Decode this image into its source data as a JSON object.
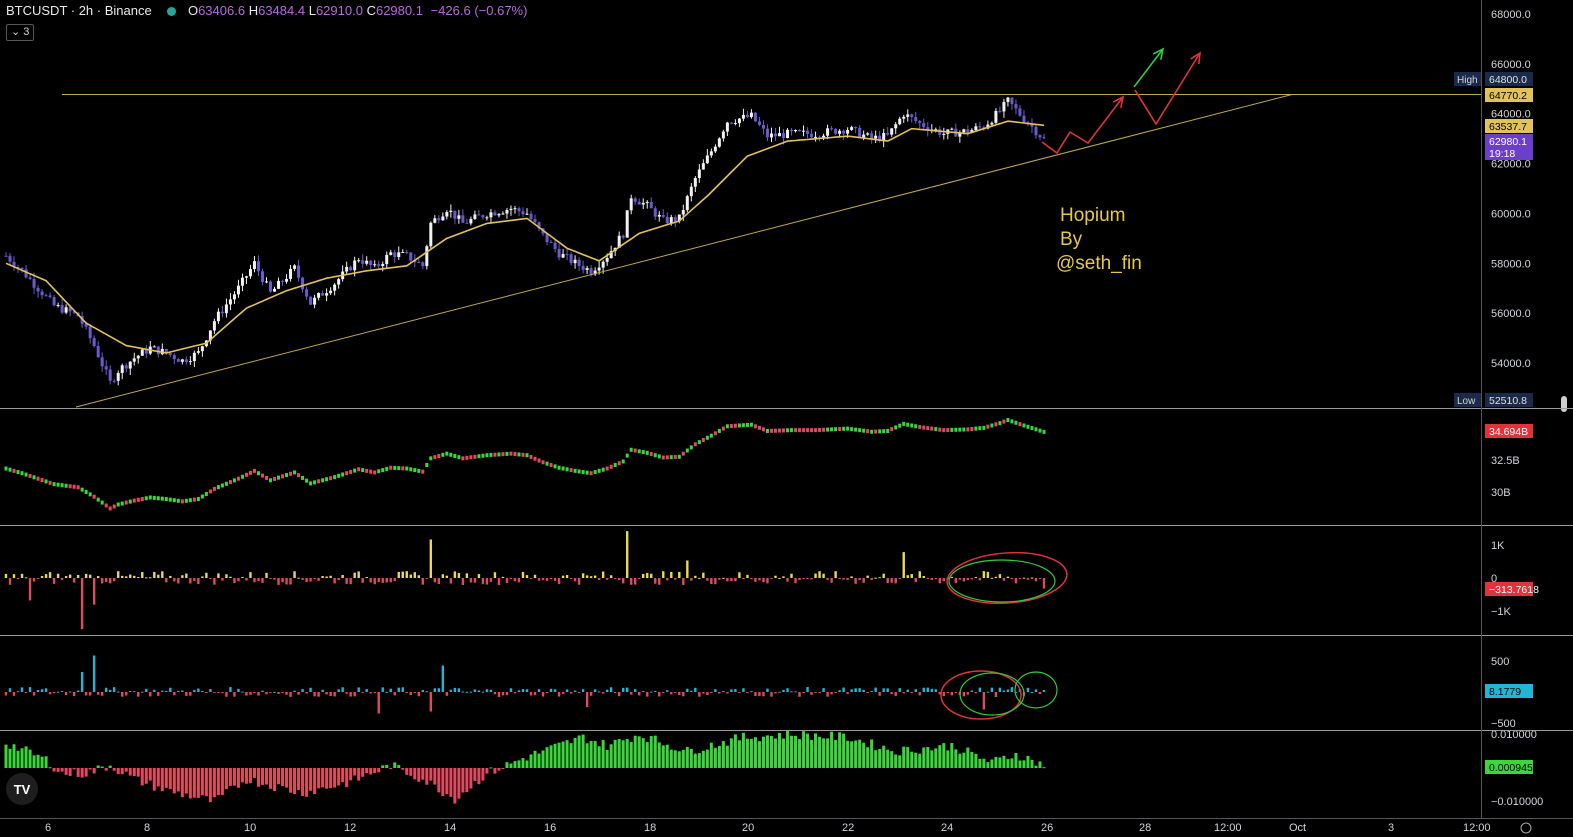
{
  "header": {
    "symbol": "BTCUSDT · 2h · Binance",
    "o_label": "O",
    "o_value": "63406.6",
    "h_label": "H",
    "h_value": "63484.4",
    "l_label": "L",
    "l_value": "62910.0",
    "c_label": "C",
    "c_value": "62980.1",
    "change": "−426.6 (−0.67%)"
  },
  "collapse_label": "⌄ 3",
  "logo_label": "TV",
  "colors": {
    "background": "#000000",
    "candle_up": "#f2f2f2",
    "candle_down": "#6a5acd",
    "ma_line": "#e2c25a",
    "trend_line": "#bfa84f",
    "hist_pos_yellow": "#e8d85a",
    "hist_neg_red": "#e04a60",
    "hist_pos_cyan": "#21b6d6",
    "hist_pos_green": "#3bd63b",
    "arrow_red": "#e0333a",
    "arrow_green": "#2ecc40",
    "annotation_text": "#e6c84a"
  },
  "annotation": {
    "lines": [
      "Hopium",
      "By",
      "@seth_fin"
    ]
  },
  "chart_data": [
    {
      "type": "candlestick",
      "name": "price",
      "ylim": [
        52000,
        68500
      ],
      "y_ticks": [
        "68000.0",
        "66000.0",
        "64000.0",
        "62000.0",
        "60000.0",
        "58000.0",
        "56000.0",
        "54000.0"
      ],
      "y_tick_values": [
        68000,
        66000,
        64000,
        62000,
        60000,
        58000,
        56000,
        54000
      ],
      "anchors": [
        [
          0,
          58300
        ],
        [
          4,
          57700
        ],
        [
          8,
          57000
        ],
        [
          12,
          56300
        ],
        [
          18,
          55900
        ],
        [
          22,
          54700
        ],
        [
          26,
          53200
        ],
        [
          28,
          53700
        ],
        [
          32,
          54200
        ],
        [
          36,
          54600
        ],
        [
          40,
          54400
        ],
        [
          44,
          54100
        ],
        [
          48,
          54400
        ],
        [
          52,
          55700
        ],
        [
          58,
          57000
        ],
        [
          62,
          58000
        ],
        [
          66,
          56800
        ],
        [
          72,
          57800
        ],
        [
          76,
          56400
        ],
        [
          82,
          57200
        ],
        [
          88,
          58200
        ],
        [
          92,
          57800
        ],
        [
          96,
          58400
        ],
        [
          100,
          58300
        ],
        [
          104,
          57900
        ],
        [
          106,
          59600
        ],
        [
          110,
          60200
        ],
        [
          114,
          59600
        ],
        [
          120,
          60000
        ],
        [
          126,
          60200
        ],
        [
          130,
          60000
        ],
        [
          134,
          59100
        ],
        [
          138,
          58400
        ],
        [
          142,
          58000
        ],
        [
          146,
          57700
        ],
        [
          150,
          58300
        ],
        [
          154,
          59200
        ],
        [
          156,
          60700
        ],
        [
          160,
          60300
        ],
        [
          164,
          59700
        ],
        [
          168,
          59800
        ],
        [
          172,
          61400
        ],
        [
          176,
          62500
        ],
        [
          180,
          63700
        ],
        [
          186,
          63900
        ],
        [
          190,
          63100
        ],
        [
          196,
          63200
        ],
        [
          202,
          63200
        ],
        [
          210,
          63400
        ],
        [
          216,
          63000
        ],
        [
          220,
          63100
        ],
        [
          224,
          64000
        ],
        [
          228,
          63600
        ],
        [
          234,
          63200
        ],
        [
          240,
          63300
        ],
        [
          244,
          63500
        ],
        [
          248,
          64100
        ],
        [
          250,
          64500
        ],
        [
          254,
          63800
        ],
        [
          259,
          62980
        ]
      ],
      "ma_anchors": [
        [
          0,
          58000
        ],
        [
          10,
          57300
        ],
        [
          20,
          55600
        ],
        [
          30,
          54700
        ],
        [
          40,
          54400
        ],
        [
          50,
          54800
        ],
        [
          60,
          56200
        ],
        [
          70,
          56900
        ],
        [
          80,
          57400
        ],
        [
          90,
          57700
        ],
        [
          100,
          57900
        ],
        [
          110,
          59000
        ],
        [
          120,
          59600
        ],
        [
          130,
          59800
        ],
        [
          140,
          58600
        ],
        [
          148,
          58100
        ],
        [
          158,
          59200
        ],
        [
          168,
          59700
        ],
        [
          175,
          60700
        ],
        [
          185,
          62300
        ],
        [
          195,
          62900
        ],
        [
          210,
          63100
        ],
        [
          220,
          62900
        ],
        [
          226,
          63400
        ],
        [
          240,
          63200
        ],
        [
          250,
          63700
        ],
        [
          259,
          63537
        ]
      ],
      "n_candles": 260,
      "price_labels": [
        {
          "caption": "High",
          "value": "64800.0",
          "price": 64800
        },
        {
          "value": "64770.2",
          "price": 64550
        },
        {
          "value": "63537.7",
          "price": 63537
        },
        {
          "value": "62980.1",
          "sub": "19:18",
          "price": 62800
        },
        {
          "caption": "Low",
          "value": "52510.8",
          "price": 52510
        }
      ],
      "horizontal_level": 64770.2
    },
    {
      "type": "line_with_bars",
      "name": "indicator-2",
      "y_ticks": [
        "32.5B",
        "30B"
      ],
      "last_value": "34.694B"
    },
    {
      "type": "histogram",
      "name": "indicator-3",
      "y_ticks": [
        "1K",
        "0",
        "−1K"
      ],
      "last_value": "−313.7618"
    },
    {
      "type": "histogram",
      "name": "indicator-4",
      "y_ticks": [
        "500",
        "−500"
      ],
      "last_value": "8.1779"
    },
    {
      "type": "histogram",
      "name": "indicator-5",
      "y_ticks": [
        "0.010000",
        "−0.010000"
      ],
      "last_value": "0.000945"
    }
  ],
  "x_axis": {
    "labels": [
      "6",
      "8",
      "10",
      "12",
      "14",
      "16",
      "18",
      "20",
      "22",
      "24",
      "26",
      "28",
      "12:00",
      "Oct",
      "3",
      "12:00"
    ]
  }
}
